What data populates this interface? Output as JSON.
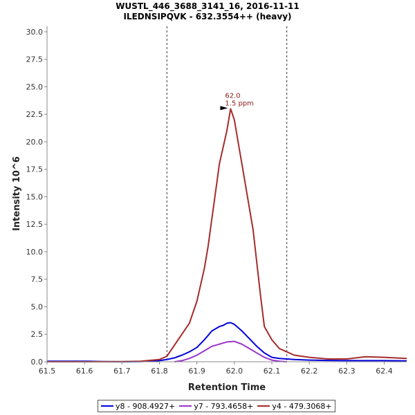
{
  "chart_data": {
    "type": "line",
    "title": "WUSTL_446_3688_3141_16, 2016-11-11",
    "subtitle": "ILEDNSIPQVK - 632.3554++ (heavy)",
    "xlabel": "Retention Time",
    "ylabel": "Intensity 10^6",
    "xlim": [
      61.5,
      62.46
    ],
    "ylim": [
      0,
      30.5
    ],
    "x_ticks": [
      "61.5",
      "61.6",
      "61.7",
      "61.8",
      "61.9",
      "62.0",
      "62.1",
      "62.2",
      "62.3",
      "62.4"
    ],
    "y_ticks": [
      "0.0",
      "2.5",
      "5.0",
      "7.5",
      "10.0",
      "12.5",
      "15.0",
      "17.5",
      "20.0",
      "22.5",
      "25.0",
      "27.5",
      "30.0"
    ],
    "grid": false,
    "legend_position": "bottom",
    "boundaries": [
      61.82,
      62.14
    ],
    "annotation": {
      "x": 61.99,
      "y": 23.0,
      "line1": "62.0",
      "line2": "1.5 ppm",
      "color": "#8b1a1a"
    },
    "series": [
      {
        "name": "y8 - 908.4927+",
        "color": "#0000dd",
        "x": [
          61.5,
          61.55,
          61.6,
          61.65,
          61.7,
          61.75,
          61.8,
          61.82,
          61.84,
          61.86,
          61.88,
          61.9,
          61.92,
          61.94,
          61.96,
          61.97,
          61.98,
          61.99,
          62.0,
          62.02,
          62.04,
          62.06,
          62.08,
          62.1,
          62.12,
          62.14,
          62.16,
          62.2,
          62.25,
          62.3,
          62.35,
          62.4,
          62.46
        ],
        "y": [
          0.05,
          0.05,
          0.05,
          0.02,
          0.0,
          0.02,
          0.1,
          0.2,
          0.35,
          0.6,
          0.9,
          1.3,
          2.0,
          2.8,
          3.2,
          3.3,
          3.5,
          3.55,
          3.4,
          2.8,
          2.1,
          1.4,
          0.8,
          0.4,
          0.3,
          0.25,
          0.2,
          0.15,
          0.12,
          0.1,
          0.1,
          0.1,
          0.08
        ]
      },
      {
        "name": "y7 - 793.4658+",
        "color": "#9933cc",
        "x": [
          61.84,
          61.86,
          61.88,
          61.9,
          61.92,
          61.94,
          61.96,
          61.98,
          62.0,
          62.02,
          62.04,
          62.06,
          62.08,
          62.1,
          62.12,
          62.14
        ],
        "y": [
          0.0,
          0.1,
          0.3,
          0.6,
          1.0,
          1.4,
          1.6,
          1.8,
          1.85,
          1.6,
          1.2,
          0.8,
          0.4,
          0.15,
          0.05,
          0.0
        ]
      },
      {
        "name": "y4 - 479.3068+",
        "color": "#a52a2a",
        "x": [
          61.5,
          61.6,
          61.7,
          61.75,
          61.8,
          61.82,
          61.84,
          61.86,
          61.88,
          61.9,
          61.91,
          61.92,
          61.93,
          61.94,
          61.95,
          61.96,
          61.97,
          61.98,
          61.99,
          62.0,
          62.01,
          62.02,
          62.03,
          62.04,
          62.05,
          62.06,
          62.07,
          62.08,
          62.1,
          62.12,
          62.14,
          62.16,
          62.2,
          62.25,
          62.3,
          62.35,
          62.4,
          62.46
        ],
        "y": [
          0.0,
          0.0,
          0.02,
          0.05,
          0.2,
          0.5,
          1.5,
          2.5,
          3.5,
          5.5,
          7.0,
          8.5,
          10.5,
          13.0,
          15.5,
          18.0,
          19.5,
          21.0,
          23.0,
          22.0,
          20.0,
          18.0,
          16.0,
          14.0,
          12.0,
          9.0,
          6.0,
          3.2,
          2.0,
          1.2,
          0.9,
          0.6,
          0.4,
          0.25,
          0.25,
          0.45,
          0.4,
          0.3
        ]
      }
    ]
  }
}
